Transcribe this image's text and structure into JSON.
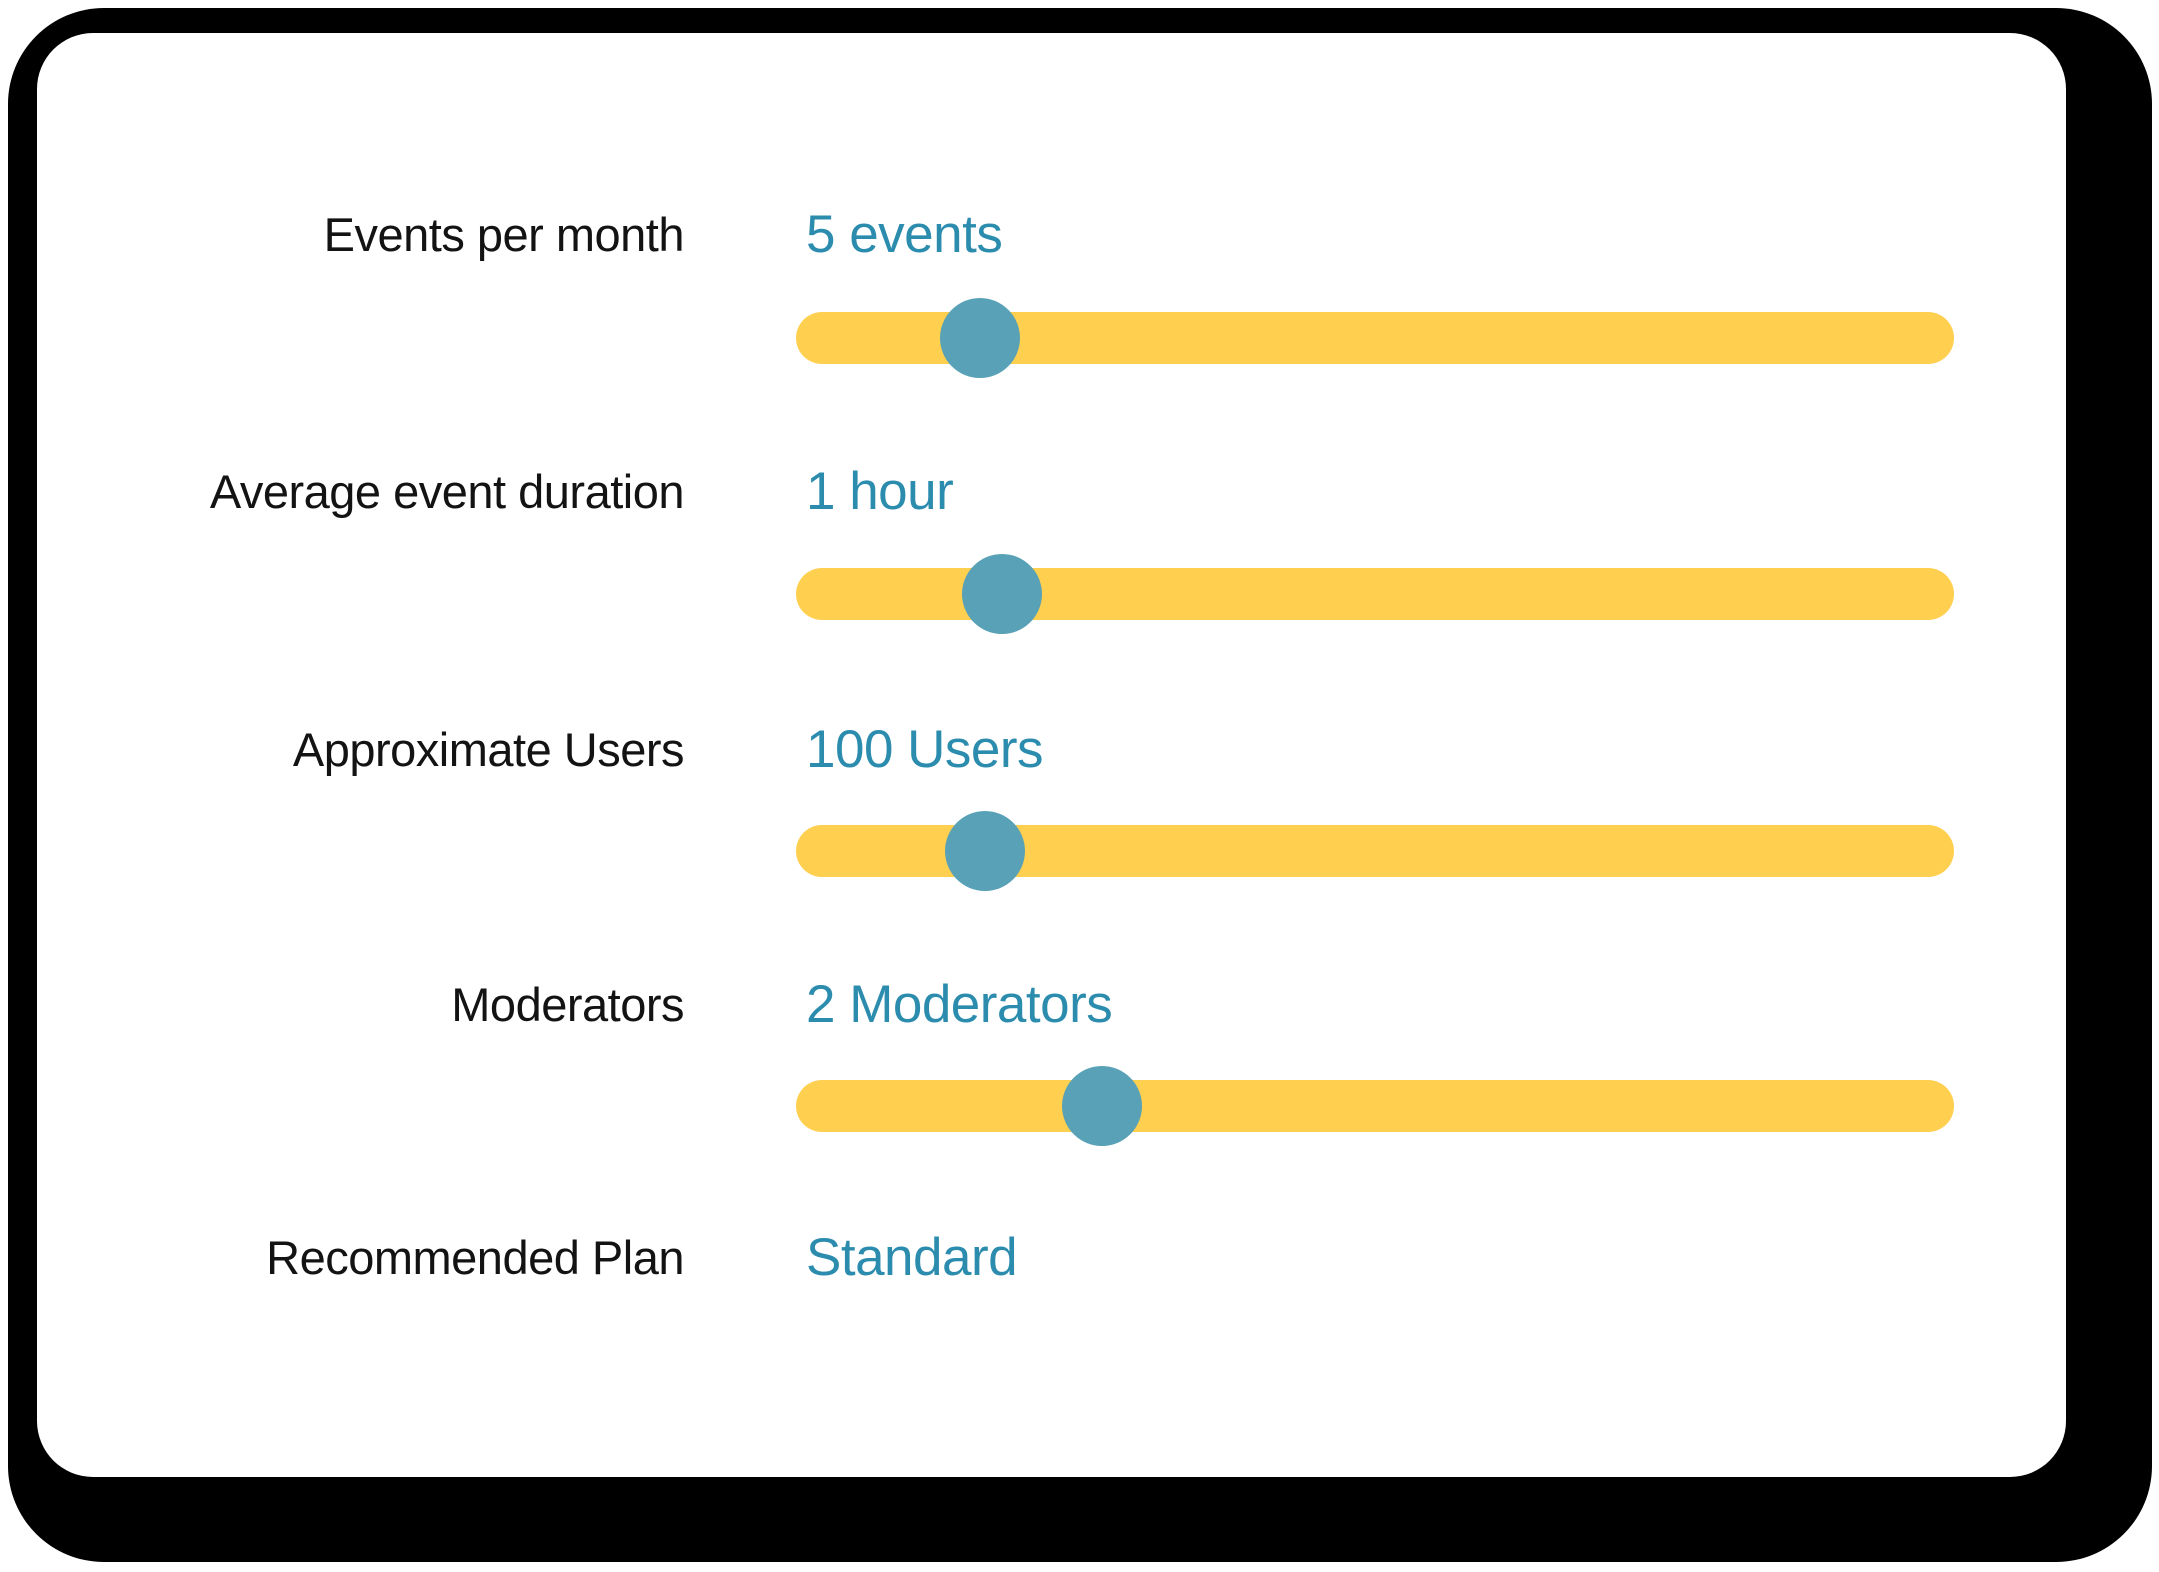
{
  "colors": {
    "track": "#FFCF4F",
    "handle": "#58A1B6",
    "value_text": "#2B8CAE",
    "label_text": "#131313",
    "card_background": "#FFFFFF",
    "frame_shadow": "#000000"
  },
  "rows": [
    {
      "label": "Events per month",
      "value": "5 events",
      "slider_percent": 15.9
    },
    {
      "label": "Average event duration",
      "value": "1 hour",
      "slider_percent": 17.8
    },
    {
      "label": "Approximate Users",
      "value": "100 Users",
      "slider_percent": 16.3
    },
    {
      "label": "Moderators",
      "value": "2 Moderators",
      "slider_percent": 26.4
    },
    {
      "label": "Recommended Plan",
      "value": "Standard"
    }
  ]
}
